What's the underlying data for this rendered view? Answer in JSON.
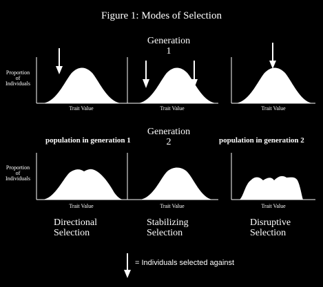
{
  "figure_title": "Figure 1:  Modes of Selection",
  "generation_1": {
    "label": "Generation",
    "number": "1"
  },
  "generation_2": {
    "label": "Generation",
    "number": "2"
  },
  "y_axis_label": {
    "line1": "Proportion",
    "line2": "of",
    "line3": "Individuals"
  },
  "x_axis_label": "Trait Value",
  "population_gen1": "population in generation 1",
  "population_gen2": "population in generation 2",
  "modes": [
    {
      "line1": "Directional",
      "line2": "Selection"
    },
    {
      "line1": "Stabilizing",
      "line2": "Selection"
    },
    {
      "line1": "Disruptive",
      "line2": "Selection"
    }
  ],
  "legend": {
    "text": "= Individuals selected against",
    "icon": "down-arrow-icon"
  },
  "colors": {
    "background": "#000000",
    "foreground": "#ffffff"
  }
}
